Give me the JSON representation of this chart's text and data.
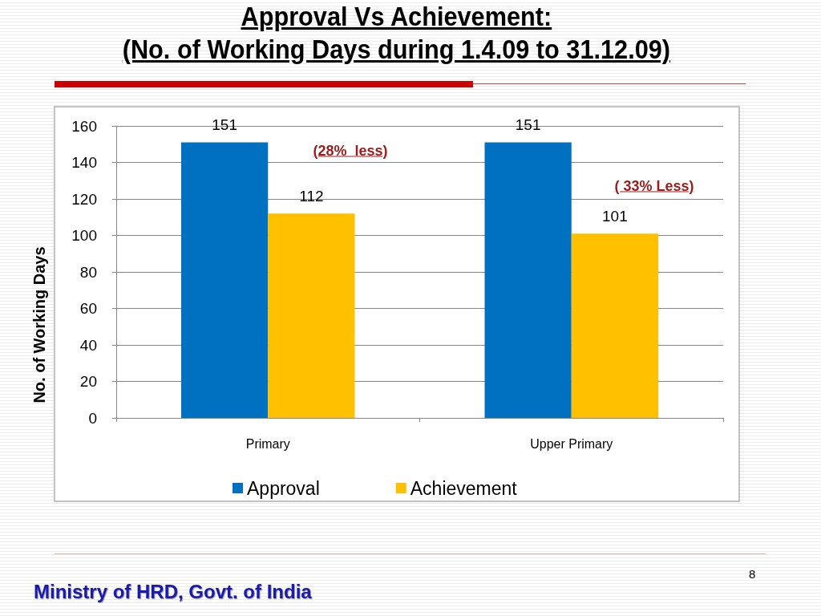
{
  "chart_data": {
    "type": "bar",
    "title": "Approval Vs Achievement:\n(No. of Working Days during 1.4.09 to 31.12.09)",
    "ylabel": "No. of Working Days",
    "categories": [
      "Primary",
      "Upper Primary"
    ],
    "series": [
      {
        "name": "Approval",
        "color": "#0070c0",
        "values": [
          151,
          151
        ]
      },
      {
        "name": "Achievement",
        "color": "#ffc000",
        "values": [
          112,
          101
        ]
      }
    ],
    "ylim": [
      0,
      160
    ],
    "yticks": [
      0,
      20,
      40,
      60,
      80,
      100,
      120,
      140,
      160
    ],
    "grid": "y",
    "legend": "bottom",
    "data_labels": true,
    "annotations": [
      "(28%  less)",
      "( 33% Less)",
      "Ministry of HRD, Govt. of India",
      "8"
    ]
  }
}
